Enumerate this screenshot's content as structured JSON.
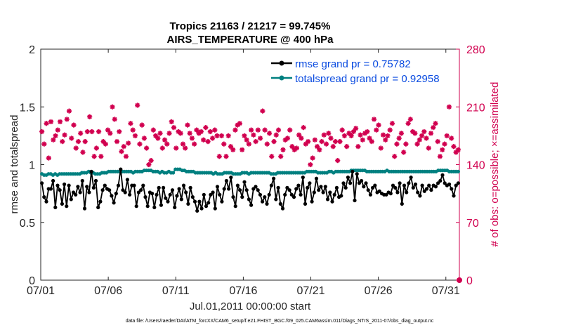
{
  "chart_data": {
    "type": "line",
    "title": "Tropics 21163 / 21217 = 99.745%",
    "subtitle": "AIRS_TEMPERATURE @ 400 hPa",
    "xlabel": "Jul.01,2011 00:00:00 start",
    "ylabel": "rmse and totalspread",
    "y2label": "# of obs: o=possible; ×=assimilated",
    "footer": "data file: /Users/raeder/DAI/ATM_forcXX/CAM6_setup/f.e21.FHIST_BGC.f09_025.CAM6assim.011/Diags_NTrS_2011-07/obs_diag_output.nc",
    "xlim": [
      1,
      32
    ],
    "ylim": [
      0,
      2
    ],
    "y2lim": [
      0,
      280
    ],
    "x_ticks": [
      1,
      6,
      11,
      16,
      21,
      26,
      31
    ],
    "x_tick_labels": [
      "07/01",
      "07/06",
      "07/11",
      "07/16",
      "07/21",
      "07/26",
      "07/31"
    ],
    "y_ticks": [
      0,
      0.5,
      1,
      1.5,
      2
    ],
    "y_tick_labels": [
      "0",
      "0.5",
      "1",
      "1.5",
      "2"
    ],
    "y2_ticks": [
      0,
      70,
      140,
      210,
      280
    ],
    "y2_tick_labels": [
      "0",
      "70",
      "140",
      "210",
      "280"
    ],
    "legend_position": "top-right",
    "series": [
      {
        "name": "rmse grand pr = 0.75782",
        "color": "#000000",
        "axis": "left",
        "values": [
          0.84,
          0.72,
          0.68,
          0.79,
          0.79,
          0.86,
          0.63,
          0.82,
          0.78,
          0.66,
          0.83,
          0.64,
          0.82,
          0.7,
          0.76,
          0.74,
          0.81,
          0.76,
          0.86,
          0.62,
          0.81,
          0.76,
          0.94,
          0.8,
          0.86,
          0.63,
          0.68,
          0.78,
          0.82,
          0.79,
          0.78,
          0.73,
          0.67,
          0.75,
          0.82,
          0.96,
          0.78,
          0.76,
          0.87,
          0.74,
          0.82,
          0.82,
          0.64,
          0.76,
          0.78,
          0.82,
          0.72,
          0.64,
          0.76,
          0.75,
          0.63,
          0.74,
          0.8,
          0.65,
          0.8,
          0.71,
          0.68,
          0.74,
          0.78,
          0.63,
          0.73,
          0.79,
          0.7,
          0.82,
          0.76,
          0.66,
          0.8,
          0.72,
          0.68,
          0.6,
          0.68,
          0.62,
          0.74,
          0.64,
          0.67,
          0.74,
          0.76,
          0.62,
          0.81,
          0.74,
          0.68,
          0.79,
          0.86,
          0.79,
          0.89,
          0.72,
          0.64,
          0.82,
          0.78,
          0.72,
          0.85,
          0.78,
          0.7,
          0.65,
          0.79,
          0.81,
          0.78,
          0.74,
          0.68,
          0.72,
          0.66,
          0.74,
          0.82,
          0.88,
          0.7,
          0.8,
          0.66,
          0.62,
          0.74,
          0.8,
          0.78,
          0.74,
          0.72,
          0.79,
          0.82,
          0.74,
          0.89,
          0.66,
          0.8,
          0.84,
          0.68,
          0.76,
          0.88,
          0.78,
          0.81,
          0.76,
          0.81,
          0.7,
          0.76,
          0.68,
          0.74,
          0.8,
          0.72,
          0.73,
          0.84,
          0.8,
          0.89,
          0.84,
          0.94,
          0.69,
          0.92,
          0.84,
          0.86,
          0.81,
          0.84,
          0.78,
          0.74,
          0.8,
          0.82,
          0.76,
          0.77,
          0.75,
          0.74,
          0.74,
          0.76,
          0.75,
          0.82,
          0.8,
          0.76,
          0.84,
          0.66,
          0.82,
          0.76,
          0.84,
          0.89,
          0.8,
          0.83,
          0.76,
          0.73,
          0.82,
          0.77,
          0.79,
          0.82,
          0.78,
          0.82,
          0.81,
          0.84,
          0.86,
          0.91,
          0.84,
          0.82,
          0.83,
          0.79,
          0.73,
          0.82,
          0.84
        ]
      },
      {
        "name": "totalspread grand pr = 0.92958",
        "color": "#008080",
        "axis": "left",
        "values": [
          0.92,
          0.91,
          0.91,
          0.92,
          0.92,
          0.91,
          0.92,
          0.91,
          0.92,
          0.92,
          0.92,
          0.92,
          0.92,
          0.92,
          0.92,
          0.92,
          0.92,
          0.92,
          0.93,
          0.93,
          0.93,
          0.94,
          0.93,
          0.93,
          0.92,
          0.92,
          0.92,
          0.93,
          0.93,
          0.93,
          0.94,
          0.94,
          0.94,
          0.94,
          0.94,
          0.94,
          0.94,
          0.94,
          0.94,
          0.94,
          0.94,
          0.93,
          0.94,
          0.94,
          0.94,
          0.94,
          0.95,
          0.95,
          0.95,
          0.95,
          0.94,
          0.94,
          0.94,
          0.93,
          0.94,
          0.93,
          0.93,
          0.94,
          0.93,
          0.93,
          0.96,
          0.96,
          0.96,
          0.95,
          0.95,
          0.94,
          0.94,
          0.94,
          0.94,
          0.93,
          0.93,
          0.93,
          0.93,
          0.93,
          0.93,
          0.93,
          0.93,
          0.92,
          0.93,
          0.92,
          0.92,
          0.92,
          0.93,
          0.93,
          0.93,
          0.93,
          0.92,
          0.92,
          0.92,
          0.92,
          0.93,
          0.93,
          0.93,
          0.92,
          0.93,
          0.93,
          0.93,
          0.93,
          0.93,
          0.93,
          0.93,
          0.93,
          0.93,
          0.92,
          0.92,
          0.92,
          0.93,
          0.93,
          0.93,
          0.93,
          0.93,
          0.93,
          0.93,
          0.93,
          0.93,
          0.93,
          0.93,
          0.93,
          0.93,
          0.94,
          0.94,
          0.94,
          0.94,
          0.94,
          0.93,
          0.93,
          0.93,
          0.93,
          0.93,
          0.94,
          0.94,
          0.93,
          0.94,
          0.94,
          0.94,
          0.94,
          0.94,
          0.94,
          0.94,
          0.95,
          0.95,
          0.95,
          0.95,
          0.95,
          0.95,
          0.95,
          0.94,
          0.94,
          0.94,
          0.94,
          0.94,
          0.94,
          0.94,
          0.94,
          0.94,
          0.95,
          0.94,
          0.94,
          0.94,
          0.94,
          0.94,
          0.94,
          0.94,
          0.94,
          0.94,
          0.94,
          0.94,
          0.94,
          0.94,
          0.94,
          0.94,
          0.94,
          0.94,
          0.94,
          0.94,
          0.94,
          0.94,
          0.94,
          0.95,
          0.95,
          0.95,
          0.95,
          0.95,
          0.94,
          0.94,
          0.94,
          0.94,
          0.94
        ]
      },
      {
        "name": "# of obs assimilated",
        "color": "#d1004f",
        "axis": "right",
        "values": [
          180,
          165,
          190,
          148,
          192,
          170,
          175,
          182,
          192,
          168,
          176,
          195,
          205,
          172,
          188,
          160,
          168,
          178,
          155,
          168,
          180,
          198,
          180,
          150,
          160,
          180,
          150,
          168,
          165,
          182,
          178,
          210,
          195,
          168,
          180,
          156,
          162,
          150,
          166,
          190,
          182,
          175,
          212,
          165,
          188,
          172,
          160,
          140,
          145,
          182,
          175,
          172,
          178,
          160,
          170,
          165,
          178,
          192,
          185,
          160,
          180,
          178,
          165,
          160,
          188,
          178,
          172,
          165,
          182,
          178,
          180,
          170,
          185,
          168,
          180,
          172,
          182,
          175,
          150,
          175,
          165,
          150,
          175,
          162,
          158,
          182,
          188,
          190,
          158,
          175,
          170,
          165,
          182,
          176,
          168,
          182,
          172,
          205,
          182,
          165,
          178,
          150,
          168,
          176,
          182,
          150,
          158,
          170,
          172,
          182,
          162,
          158,
          160,
          176,
          172,
          185,
          165,
          168,
          140,
          148,
          170,
          162,
          158,
          168,
          176,
          165,
          178,
          172,
          162,
          168,
          145,
          168,
          182,
          175,
          162,
          178,
          175,
          180,
          184,
          162,
          176,
          170,
          178,
          180,
          172,
          168,
          195,
          182,
          188,
          160,
          176,
          170,
          175,
          182,
          190,
          150,
          165,
          172,
          178,
          155,
          165,
          190,
          195,
          180,
          178,
          165,
          170,
          175,
          180,
          172,
          160,
          178,
          185,
          190,
          168,
          150,
          158,
          165,
          175,
          210,
          172,
          162,
          155,
          158
        ]
      }
    ]
  }
}
